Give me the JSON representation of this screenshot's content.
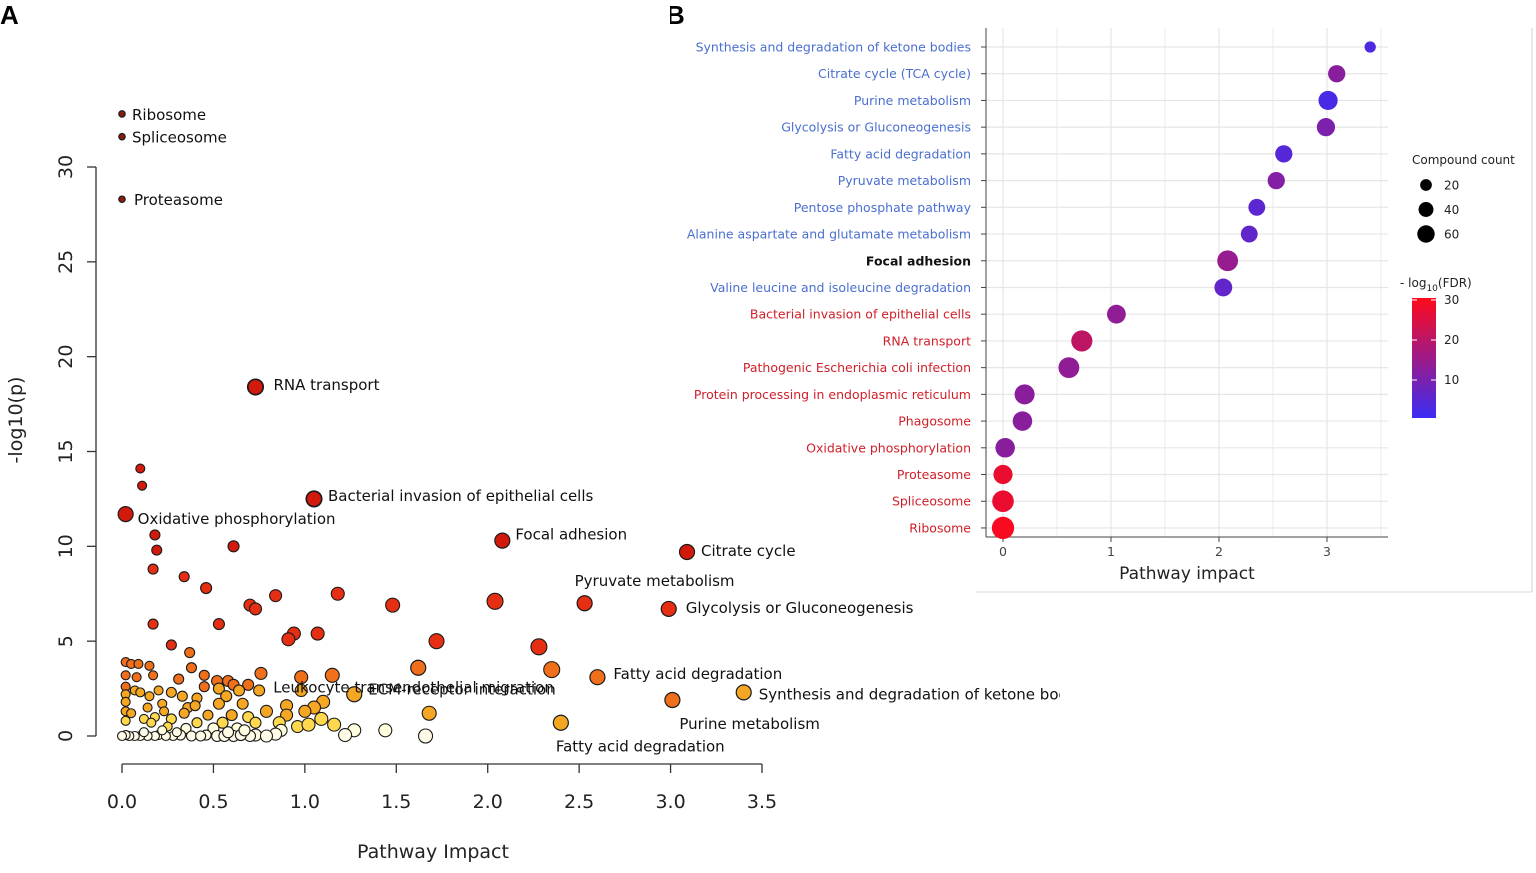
{
  "panel_a_letter": "A",
  "panel_b_letter": "B",
  "chart_data": [
    {
      "type": "scatter",
      "title": "",
      "xlabel": "Pathway Impact",
      "ylabel": "-log10(p)",
      "xlim": [
        0,
        3.5
      ],
      "ylim": [
        0,
        31
      ],
      "x_ticks": [
        0.0,
        0.5,
        1.0,
        1.5,
        2.0,
        2.5,
        3.0,
        3.5
      ],
      "x_tick_labels": [
        "0.0",
        "0.5",
        "1.0",
        "1.5",
        "2.0",
        "2.5",
        "3.0",
        "3.5"
      ],
      "y_ticks": [
        0,
        5,
        10,
        15,
        20,
        25,
        30
      ],
      "y_tick_labels": [
        "0",
        "5",
        "10",
        "15",
        "20",
        "25",
        "30"
      ],
      "color_scale": [
        "#ffffe0",
        "#ffd84d",
        "#f5a623",
        "#ef6f1a",
        "#e52e12",
        "#d21a0c",
        "#8b1a10"
      ],
      "labeled_points": [
        {
          "label": "Ribosome",
          "x": 0.0,
          "y": 32.8
        },
        {
          "label": "Spliceosome",
          "x": 0.0,
          "y": 31.6
        },
        {
          "label": "Proteasome",
          "x": 0.0,
          "y": 28.3
        },
        {
          "label": "RNA transport",
          "x": 0.73,
          "y": 18.4
        },
        {
          "label": "Bacterial invasion of epithelial cells",
          "x": 1.05,
          "y": 12.5
        },
        {
          "label": "Oxidative phosphorylation",
          "x": 0.02,
          "y": 11.7
        },
        {
          "label": "Focal adhesion",
          "x": 2.08,
          "y": 10.3
        },
        {
          "label": "Citrate cycle",
          "x": 3.09,
          "y": 9.7
        },
        {
          "label": "Pyruvate metabolism",
          "x": 2.53,
          "y": 7.0
        },
        {
          "label": "Glycolysis or Gluconeogenesis",
          "x": 2.99,
          "y": 6.7
        },
        {
          "label": "Leukocyte transendothelial migration",
          "x": 1.62,
          "y": 3.6
        },
        {
          "label": "Fatty acid degradation",
          "x": 2.6,
          "y": 3.1
        },
        {
          "label": "ECM-receptor interaction",
          "x": 1.27,
          "y": 2.2
        },
        {
          "label": "Synthesis and degradation of ketone bodies",
          "x": 3.4,
          "y": 2.3
        },
        {
          "label": "Purine metabolism",
          "x": 3.01,
          "y": 1.9
        },
        {
          "label": "Fatty acid degradation",
          "x": 2.4,
          "y": 0.7
        }
      ],
      "points": [
        {
          "x": 0.73,
          "y": 18.4,
          "s": 1.0
        },
        {
          "x": 0.1,
          "y": 14.1,
          "s": 0.3
        },
        {
          "x": 0.11,
          "y": 13.2,
          "s": 0.3
        },
        {
          "x": 1.05,
          "y": 12.5,
          "s": 1.0
        },
        {
          "x": 0.02,
          "y": 11.7,
          "s": 0.3
        },
        {
          "x": 0.18,
          "y": 10.6,
          "s": 0.4
        },
        {
          "x": 0.19,
          "y": 9.8,
          "s": 0.4
        },
        {
          "x": 0.61,
          "y": 10.0,
          "s": 0.5
        },
        {
          "x": 0.17,
          "y": 8.8,
          "s": 0.4
        },
        {
          "x": 0.34,
          "y": 8.4,
          "s": 0.4
        },
        {
          "x": 0.46,
          "y": 7.8,
          "s": 0.5
        },
        {
          "x": 0.84,
          "y": 7.4,
          "s": 0.6
        },
        {
          "x": 1.18,
          "y": 7.5,
          "s": 0.7
        },
        {
          "x": 0.7,
          "y": 6.9,
          "s": 0.6
        },
        {
          "x": 0.73,
          "y": 6.7,
          "s": 0.6
        },
        {
          "x": 1.48,
          "y": 6.9,
          "s": 0.8
        },
        {
          "x": 2.04,
          "y": 7.1,
          "s": 1.0
        },
        {
          "x": 0.53,
          "y": 5.9,
          "s": 0.5
        },
        {
          "x": 0.17,
          "y": 5.9,
          "s": 0.4
        },
        {
          "x": 0.94,
          "y": 5.4,
          "s": 0.7
        },
        {
          "x": 0.91,
          "y": 5.1,
          "s": 0.7
        },
        {
          "x": 1.07,
          "y": 5.4,
          "s": 0.7
        },
        {
          "x": 1.72,
          "y": 5.0,
          "s": 0.9
        },
        {
          "x": 2.28,
          "y": 4.7,
          "s": 1.0
        },
        {
          "x": 0.27,
          "y": 4.8,
          "s": 0.4
        },
        {
          "x": 0.37,
          "y": 4.4,
          "s": 0.4
        },
        {
          "x": 0.38,
          "y": 3.6,
          "s": 0.4
        },
        {
          "x": 2.35,
          "y": 3.5,
          "s": 1.0
        },
        {
          "x": 1.15,
          "y": 3.2,
          "s": 0.8
        },
        {
          "x": 0.76,
          "y": 3.3,
          "s": 0.6
        },
        {
          "x": 0.98,
          "y": 3.1,
          "s": 0.7
        },
        {
          "x": 0.02,
          "y": 3.9,
          "s": 0.3
        },
        {
          "x": 0.05,
          "y": 3.8,
          "s": 0.3
        },
        {
          "x": 0.09,
          "y": 3.8,
          "s": 0.3
        },
        {
          "x": 0.15,
          "y": 3.7,
          "s": 0.3
        },
        {
          "x": 0.17,
          "y": 3.2,
          "s": 0.3
        },
        {
          "x": 0.02,
          "y": 3.2,
          "s": 0.3
        },
        {
          "x": 0.08,
          "y": 3.1,
          "s": 0.3
        },
        {
          "x": 0.02,
          "y": 2.6,
          "s": 0.3
        },
        {
          "x": 0.07,
          "y": 2.4,
          "s": 0.3
        },
        {
          "x": 0.1,
          "y": 2.3,
          "s": 0.3
        },
        {
          "x": 0.02,
          "y": 2.2,
          "s": 0.3
        },
        {
          "x": 0.15,
          "y": 2.1,
          "s": 0.3
        },
        {
          "x": 0.2,
          "y": 2.4,
          "s": 0.3
        },
        {
          "x": 0.31,
          "y": 3.0,
          "s": 0.4
        },
        {
          "x": 0.45,
          "y": 3.2,
          "s": 0.4
        },
        {
          "x": 0.52,
          "y": 2.9,
          "s": 0.5
        },
        {
          "x": 0.58,
          "y": 2.9,
          "s": 0.5
        },
        {
          "x": 0.61,
          "y": 2.7,
          "s": 0.5
        },
        {
          "x": 0.69,
          "y": 2.7,
          "s": 0.5
        },
        {
          "x": 0.75,
          "y": 2.4,
          "s": 0.5
        },
        {
          "x": 0.45,
          "y": 2.6,
          "s": 0.4
        },
        {
          "x": 0.53,
          "y": 2.5,
          "s": 0.5
        },
        {
          "x": 0.64,
          "y": 2.4,
          "s": 0.5
        },
        {
          "x": 0.27,
          "y": 2.3,
          "s": 0.4
        },
        {
          "x": 0.33,
          "y": 2.1,
          "s": 0.4
        },
        {
          "x": 0.41,
          "y": 2.0,
          "s": 0.4
        },
        {
          "x": 0.57,
          "y": 2.1,
          "s": 0.5
        },
        {
          "x": 0.66,
          "y": 1.7,
          "s": 0.5
        },
        {
          "x": 0.53,
          "y": 1.7,
          "s": 0.5
        },
        {
          "x": 0.9,
          "y": 1.6,
          "s": 0.6
        },
        {
          "x": 1.1,
          "y": 1.8,
          "s": 0.7
        },
        {
          "x": 1.05,
          "y": 1.5,
          "s": 0.7
        },
        {
          "x": 0.98,
          "y": 2.4,
          "s": 0.6
        },
        {
          "x": 1.0,
          "y": 1.3,
          "s": 0.6
        },
        {
          "x": 0.79,
          "y": 1.3,
          "s": 0.6
        },
        {
          "x": 0.9,
          "y": 1.1,
          "s": 0.6
        },
        {
          "x": 0.36,
          "y": 1.5,
          "s": 0.4
        },
        {
          "x": 0.4,
          "y": 1.6,
          "s": 0.4
        },
        {
          "x": 0.34,
          "y": 1.2,
          "s": 0.4
        },
        {
          "x": 0.22,
          "y": 1.7,
          "s": 0.3
        },
        {
          "x": 0.23,
          "y": 1.3,
          "s": 0.3
        },
        {
          "x": 0.14,
          "y": 1.5,
          "s": 0.3
        },
        {
          "x": 0.02,
          "y": 1.8,
          "s": 0.3
        },
        {
          "x": 0.02,
          "y": 1.3,
          "s": 0.3
        },
        {
          "x": 0.05,
          "y": 1.2,
          "s": 0.3
        },
        {
          "x": 0.47,
          "y": 1.1,
          "s": 0.4
        },
        {
          "x": 0.6,
          "y": 1.1,
          "s": 0.5
        },
        {
          "x": 0.69,
          "y": 1.0,
          "s": 0.5
        },
        {
          "x": 1.09,
          "y": 0.9,
          "s": 0.7
        },
        {
          "x": 0.27,
          "y": 0.9,
          "s": 0.4
        },
        {
          "x": 0.12,
          "y": 0.9,
          "s": 0.3
        },
        {
          "x": 0.18,
          "y": 1.0,
          "s": 0.3
        },
        {
          "x": 0.02,
          "y": 0.8,
          "s": 0.3
        },
        {
          "x": 0.16,
          "y": 0.7,
          "s": 0.3
        },
        {
          "x": 0.41,
          "y": 0.7,
          "s": 0.4
        },
        {
          "x": 0.55,
          "y": 0.7,
          "s": 0.5
        },
        {
          "x": 0.73,
          "y": 0.7,
          "s": 0.5
        },
        {
          "x": 0.86,
          "y": 0.7,
          "s": 0.6
        },
        {
          "x": 0.96,
          "y": 0.5,
          "s": 0.6
        },
        {
          "x": 1.02,
          "y": 0.6,
          "s": 0.7
        },
        {
          "x": 1.27,
          "y": 0.3,
          "s": 0.7
        },
        {
          "x": 1.44,
          "y": 0.3,
          "s": 0.7
        },
        {
          "x": 1.68,
          "y": 1.2,
          "s": 0.8
        },
        {
          "x": 0.5,
          "y": 0.4,
          "s": 0.5
        },
        {
          "x": 0.63,
          "y": 0.4,
          "s": 0.5
        },
        {
          "x": 0.25,
          "y": 0.5,
          "s": 0.3
        },
        {
          "x": 0.35,
          "y": 0.4,
          "s": 0.4
        },
        {
          "x": 0.87,
          "y": 0.3,
          "s": 0.6
        },
        {
          "x": 1.22,
          "y": 0.05,
          "s": 0.7
        },
        {
          "x": 1.66,
          "y": 0.0,
          "s": 0.8
        },
        {
          "x": 0.84,
          "y": 0.1,
          "s": 0.6
        },
        {
          "x": 0.73,
          "y": 0.05,
          "s": 0.6
        },
        {
          "x": 0.7,
          "y": 0.0,
          "s": 0.5
        },
        {
          "x": 0.61,
          "y": 0.0,
          "s": 0.5
        },
        {
          "x": 0.52,
          "y": 0.0,
          "s": 0.5
        },
        {
          "x": 0.46,
          "y": 0.05,
          "s": 0.4
        },
        {
          "x": 0.38,
          "y": 0.0,
          "s": 0.4
        },
        {
          "x": 0.32,
          "y": 0.05,
          "s": 0.4
        },
        {
          "x": 0.28,
          "y": 0.0,
          "s": 0.3
        },
        {
          "x": 0.2,
          "y": 0.05,
          "s": 0.3
        },
        {
          "x": 0.18,
          "y": 0.0,
          "s": 0.3
        },
        {
          "x": 0.14,
          "y": 0.0,
          "s": 0.3
        },
        {
          "x": 0.1,
          "y": 0.0,
          "s": 0.3
        },
        {
          "x": 0.07,
          "y": 0.0,
          "s": 0.3
        },
        {
          "x": 0.04,
          "y": 0.0,
          "s": 0.3
        },
        {
          "x": 0.02,
          "y": 0.05,
          "s": 0.3
        },
        {
          "x": 0.0,
          "y": 0.0,
          "s": 0.3
        },
        {
          "x": 0.24,
          "y": 0.0,
          "s": 0.3
        },
        {
          "x": 0.43,
          "y": 0.0,
          "s": 0.4
        },
        {
          "x": 0.56,
          "y": 0.0,
          "s": 0.5
        },
        {
          "x": 0.65,
          "y": 0.05,
          "s": 0.5
        },
        {
          "x": 0.79,
          "y": 0.0,
          "s": 0.6
        },
        {
          "x": 0.12,
          "y": 0.2,
          "s": 0.3
        },
        {
          "x": 0.22,
          "y": 0.3,
          "s": 0.3
        },
        {
          "x": 0.3,
          "y": 0.2,
          "s": 0.3
        },
        {
          "x": 0.58,
          "y": 0.2,
          "s": 0.5
        },
        {
          "x": 0.67,
          "y": 0.3,
          "s": 0.5
        },
        {
          "x": 1.16,
          "y": 0.6,
          "s": 0.7
        }
      ]
    },
    {
      "type": "scatter",
      "title": "",
      "xlabel": "Pathway impact",
      "ylabel": "",
      "xlim": [
        -0.12,
        3.55
      ],
      "x_ticks": [
        0,
        1,
        2,
        3
      ],
      "x_tick_labels": [
        "0",
        "1",
        "2",
        "3"
      ],
      "categories": [
        "Synthesis and degradation of ketone bodies",
        "Citrate cycle (TCA cycle)",
        "Purine metabolism",
        "Glycolysis or Gluconeogenesis",
        "Fatty acid degradation",
        "Pyruvate metabolism",
        "Pentose phosphate pathway",
        "Alanine aspartate and glutamate metabolism",
        "Focal adhesion",
        "Valine leucine and isoleucine degradation",
        "Bacterial invasion of epithelial cells",
        "RNA transport",
        "Pathogenic Escherichia coli infection",
        "Protein processing in endoplasmic reticulum",
        "Phagosome",
        "Oxidative phosphorylation",
        "Proteasome",
        "Spliceosome",
        "Ribosome"
      ],
      "category_colors": [
        "#4a6fcf",
        "#4a6fcf",
        "#4a6fcf",
        "#4a6fcf",
        "#4a6fcf",
        "#4a6fcf",
        "#4a6fcf",
        "#4a6fcf",
        "#111111",
        "#4a6fcf",
        "#d0202a",
        "#d0202a",
        "#d0202a",
        "#d0202a",
        "#d0202a",
        "#d0202a",
        "#d0202a",
        "#d0202a",
        "#d0202a"
      ],
      "category_bold": [
        false,
        false,
        false,
        false,
        false,
        false,
        false,
        false,
        true,
        false,
        false,
        false,
        false,
        false,
        false,
        false,
        false,
        false,
        false
      ],
      "x_values": [
        3.4,
        3.09,
        3.01,
        2.99,
        2.6,
        2.53,
        2.35,
        2.28,
        2.08,
        2.04,
        1.05,
        0.73,
        0.61,
        0.2,
        0.18,
        0.02,
        0.0,
        0.0,
        0.0
      ],
      "compound_count": [
        8,
        30,
        40,
        35,
        30,
        30,
        28,
        28,
        50,
        33,
        38,
        52,
        50,
        45,
        42,
        42,
        40,
        55,
        60
      ],
      "neg_log10_fdr": [
        3,
        12,
        2,
        10,
        4,
        11,
        5,
        6,
        14,
        6,
        13,
        20,
        13,
        12,
        12,
        12,
        27,
        27,
        29
      ],
      "legend_size_title": "Compound count",
      "legend_size_values": [
        "20",
        "40",
        "60"
      ],
      "legend_size_counts": [
        20,
        40,
        60
      ],
      "legend_color_title_prefix": "- log",
      "legend_color_title_sub": "10",
      "legend_color_title_suffix": "(FDR)",
      "legend_color_ticks": [
        "30",
        "20",
        "10"
      ],
      "legend_color_tick_values": [
        30,
        20,
        10
      ],
      "color_range": [
        0,
        30
      ],
      "color_low": "#3b2cf5",
      "color_high": "#ff0a1a"
    }
  ]
}
